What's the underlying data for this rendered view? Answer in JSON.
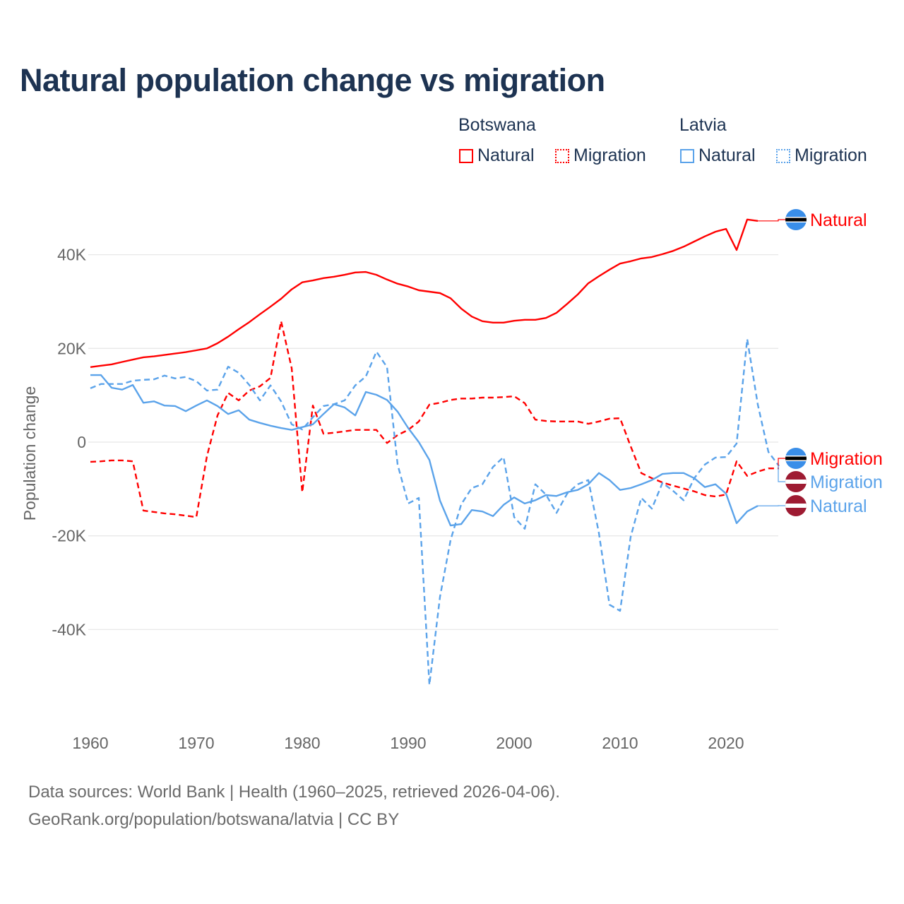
{
  "title": "Natural population change vs migration",
  "legend": {
    "groups": [
      {
        "name": "Botswana",
        "items": [
          {
            "label": "Natural",
            "color": "#ff0000",
            "style": "solid"
          },
          {
            "label": "Migration",
            "color": "#ff0000",
            "style": "dotted"
          }
        ]
      },
      {
        "name": "Latvia",
        "items": [
          {
            "label": "Natural",
            "color": "#5ba3ea",
            "style": "solid"
          },
          {
            "label": "Migration",
            "color": "#5ba3ea",
            "style": "dotted"
          }
        ]
      }
    ]
  },
  "footer": {
    "line1": "Data sources: World Bank | Health (1960–2025, retrieved 2026-04-06).",
    "line2": "GeoRank.org/population/botswana/latvia | CC BY"
  },
  "chart_data": {
    "type": "line",
    "title": "Natural population change vs migration",
    "xlabel": "",
    "ylabel": "Population change",
    "xlim": [
      1960,
      2025
    ],
    "ylim": [
      -55000,
      50000
    ],
    "x_ticks": [
      1960,
      1970,
      1980,
      1990,
      2000,
      2010,
      2020
    ],
    "x_tick_labels": [
      "1960",
      "1970",
      "1980",
      "1990",
      "2000",
      "2010",
      "2020"
    ],
    "y_ticks": [
      40000,
      20000,
      0,
      -20000,
      -40000
    ],
    "y_tick_labels": [
      "40K",
      "20K",
      "0",
      "-20K",
      "-40K"
    ],
    "grid": true,
    "legend_position": "top-right",
    "series": [
      {
        "name": "Botswana Natural",
        "end_label": "Natural",
        "country": "Botswana",
        "color": "#ff0000",
        "dash": false,
        "start": 1960,
        "values": [
          16.0,
          16.3,
          16.6,
          17.1,
          17.6,
          18.1,
          18.3,
          18.6,
          18.9,
          19.2,
          19.6,
          20.0,
          21.1,
          22.5,
          24.1,
          25.6,
          27.3,
          28.9,
          30.6,
          32.6,
          34.1,
          34.5,
          35.0,
          35.3,
          35.7,
          36.2,
          36.3,
          35.7,
          34.7,
          33.8,
          33.2,
          32.4,
          32.1,
          31.8,
          30.7,
          28.5,
          26.8,
          25.8,
          25.5,
          25.5,
          25.9,
          26.1,
          26.1,
          26.5,
          27.6,
          29.5,
          31.5,
          33.9,
          35.4,
          36.8,
          38.1,
          38.6,
          39.2,
          39.5,
          40.1,
          40.8,
          41.7,
          42.8,
          43.9,
          44.9,
          45.5,
          41.0,
          47.5,
          47.2
        ]
      },
      {
        "name": "Botswana Migration",
        "end_label": "Migration",
        "country": "Botswana",
        "color": "#ff0000",
        "dash": true,
        "start": 1960,
        "values": [
          -4.2,
          -4.1,
          -3.9,
          -3.9,
          -4.1,
          -14.6,
          -14.9,
          -15.2,
          -15.4,
          -15.7,
          -16.0,
          -3.0,
          5.7,
          10.5,
          8.9,
          11.0,
          11.9,
          13.7,
          25.8,
          15.8,
          -10.7,
          7.8,
          1.8,
          2.0,
          2.3,
          2.6,
          2.6,
          2.6,
          -0.2,
          1.5,
          2.6,
          4.4,
          8.0,
          8.4,
          9.0,
          9.3,
          9.3,
          9.5,
          9.5,
          9.6,
          9.8,
          8.3,
          4.8,
          4.5,
          4.4,
          4.4,
          4.4,
          3.9,
          4.4,
          5.0,
          5.1,
          -0.9,
          -6.6,
          -7.7,
          -8.6,
          -9.3,
          -9.9,
          -10.5,
          -11.3,
          -11.6,
          -11.2,
          -4.1,
          -7.2,
          -6.3,
          -5.6,
          -5.6
        ]
      },
      {
        "name": "Latvia Migration",
        "end_label": "Migration",
        "country": "Latvia",
        "color": "#5ba3ea",
        "dash": true,
        "start": 1960,
        "values": [
          11.5,
          12.4,
          12.4,
          12.4,
          13.1,
          13.3,
          13.4,
          14.2,
          13.6,
          13.9,
          13.0,
          11.0,
          11.2,
          16.1,
          14.8,
          12.2,
          8.9,
          12.1,
          8.7,
          3.8,
          2.7,
          5.3,
          7.7,
          8.1,
          8.9,
          12.1,
          14.0,
          19.3,
          16.0,
          -4.8,
          -13.1,
          -11.9,
          -51.8,
          -33.0,
          -20.9,
          -13.3,
          -9.8,
          -9.0,
          -5.3,
          -3.2,
          -16.0,
          -18.5,
          -9.0,
          -11.2,
          -15.1,
          -11.0,
          -9.0,
          -8.1,
          -19.4,
          -34.7,
          -36.0,
          -20.2,
          -11.9,
          -14.2,
          -8.7,
          -10.4,
          -12.4,
          -7.7,
          -4.8,
          -3.3,
          -3.2,
          -0.3,
          22.0,
          8.0,
          -2.1,
          -5.1
        ]
      },
      {
        "name": "Latvia Natural",
        "end_label": "Natural",
        "country": "Latvia",
        "color": "#5ba3ea",
        "dash": false,
        "start": 1960,
        "values": [
          14.3,
          14.3,
          11.6,
          11.2,
          12.2,
          8.4,
          8.7,
          7.8,
          7.7,
          6.6,
          7.8,
          8.9,
          7.7,
          6.0,
          6.8,
          4.8,
          4.1,
          3.5,
          3.0,
          2.6,
          3.2,
          3.8,
          6.0,
          8.1,
          7.4,
          5.7,
          10.7,
          10.1,
          9.0,
          6.5,
          3.0,
          0.0,
          -3.8,
          -12.5,
          -17.8,
          -17.5,
          -14.5,
          -14.8,
          -15.8,
          -13.4,
          -11.8,
          -13.1,
          -12.4,
          -11.3,
          -11.5,
          -10.7,
          -10.2,
          -9.0,
          -6.6,
          -8.1,
          -10.2,
          -9.8,
          -9.0,
          -8.1,
          -6.8,
          -6.6,
          -6.6,
          -7.7,
          -9.6,
          -9.0,
          -11.0,
          -17.3,
          -14.8,
          -13.6
        ]
      }
    ],
    "value_units": "thousands"
  }
}
